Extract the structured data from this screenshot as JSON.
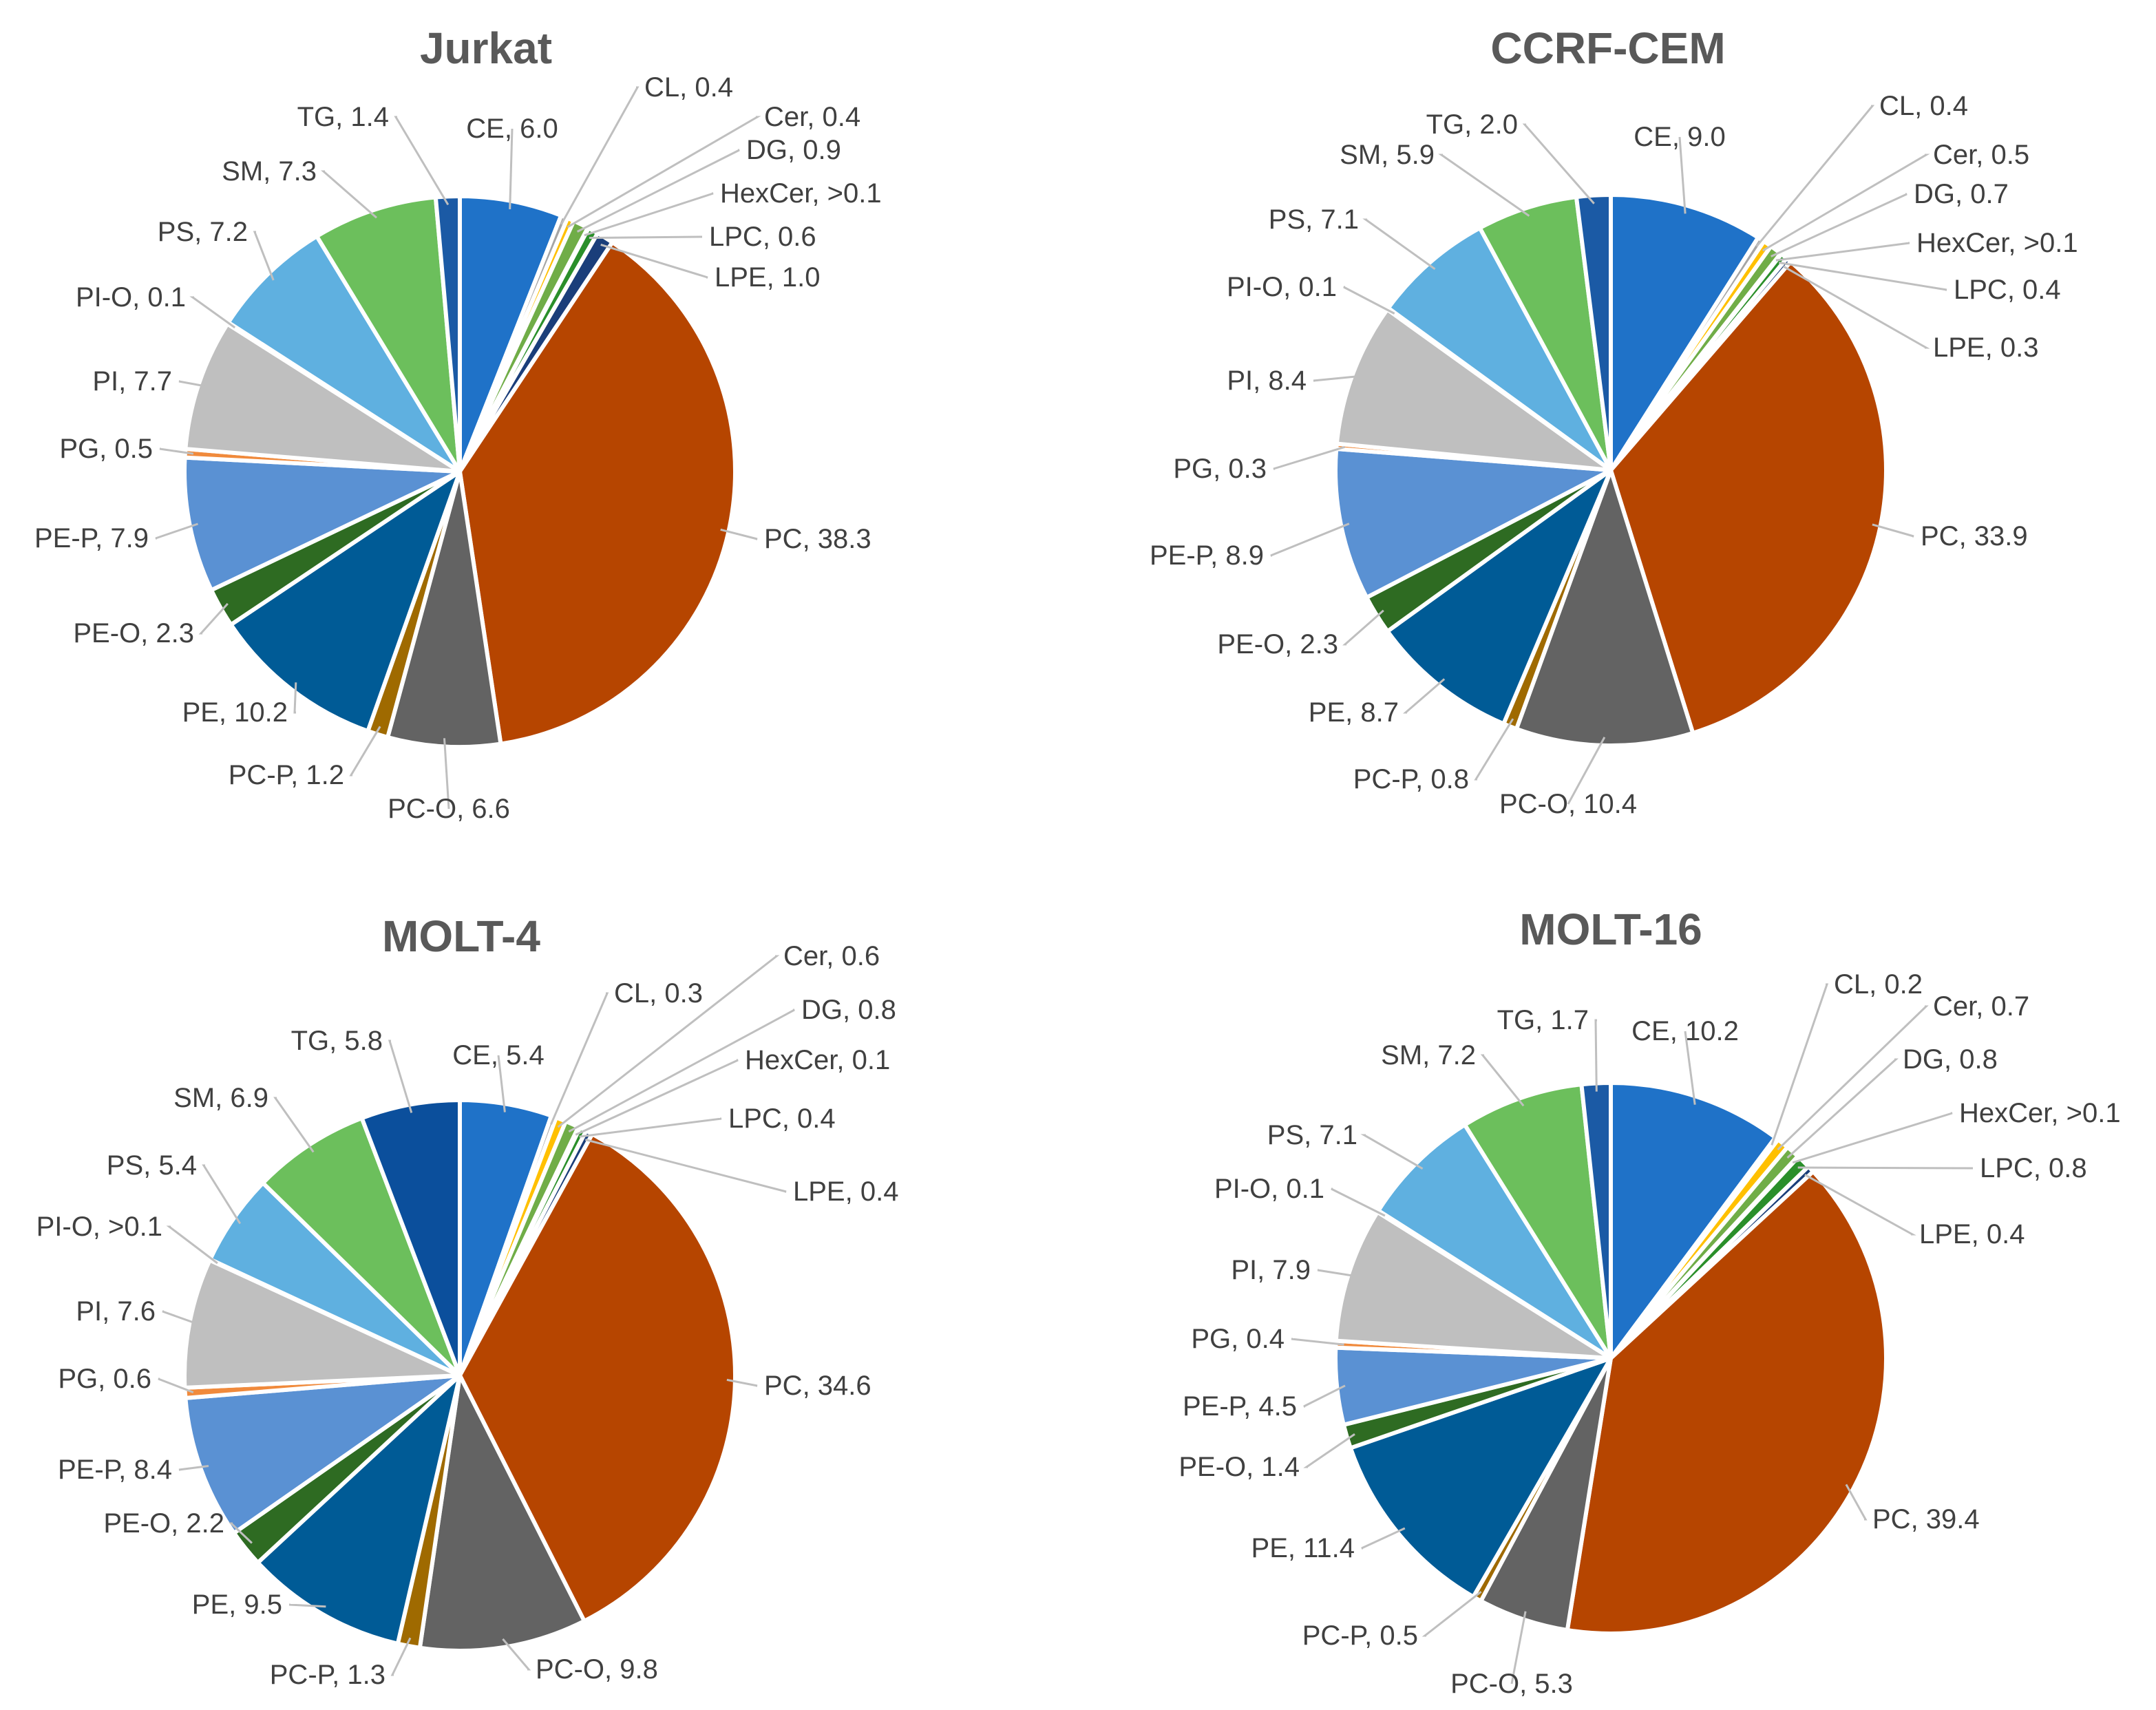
{
  "colors": {
    "CE": "#1f72c8",
    "CL": "#a5a5a5",
    "Cer": "#ffc000",
    "DG": "#70ad47",
    "HexCer": "#4472c4",
    "LPC": "#2a8f2a",
    "LPE": "#1a3e7a",
    "PC": "#b64500",
    "PC-O": "#636363",
    "PC-P": "#9f6a00",
    "PE": "#005b96",
    "PE-O": "#2e6b22",
    "PE-P": "#5a91d3",
    "PG": "#f08a3c",
    "PI": "#bfbfbf",
    "PI-O": "#ffe699",
    "PS": "#5fb0e0",
    "SM": "#6cbf5c",
    "TG": "#1b5aa5",
    "TG_molt4": "#0b4f9c"
  },
  "chart_data": [
    {
      "type": "pie",
      "title": "Jurkat",
      "slices": [
        {
          "name": "CE",
          "value": 6.0,
          "label": "CE, 6.0"
        },
        {
          "name": "CL",
          "value": 0.4,
          "label": "CL, 0.4"
        },
        {
          "name": "Cer",
          "value": 0.4,
          "label": "Cer, 0.4"
        },
        {
          "name": "DG",
          "value": 0.9,
          "label": "DG, 0.9"
        },
        {
          "name": "HexCer",
          "value": 0.05,
          "label": "HexCer, >0.1"
        },
        {
          "name": "LPC",
          "value": 0.6,
          "label": "LPC, 0.6"
        },
        {
          "name": "LPE",
          "value": 1.0,
          "label": "LPE, 1.0"
        },
        {
          "name": "PC",
          "value": 38.3,
          "label": "PC, 38.3"
        },
        {
          "name": "PC-O",
          "value": 6.6,
          "label": "PC-O, 6.6"
        },
        {
          "name": "PC-P",
          "value": 1.2,
          "label": "PC-P, 1.2"
        },
        {
          "name": "PE",
          "value": 10.2,
          "label": "PE, 10.2"
        },
        {
          "name": "PE-O",
          "value": 2.3,
          "label": "PE-O, 2.3"
        },
        {
          "name": "PE-P",
          "value": 7.9,
          "label": "PE-P, 7.9"
        },
        {
          "name": "PG",
          "value": 0.5,
          "label": "PG, 0.5"
        },
        {
          "name": "PI",
          "value": 7.7,
          "label": "PI, 7.7"
        },
        {
          "name": "PI-O",
          "value": 0.1,
          "label": "PI-O, 0.1"
        },
        {
          "name": "PS",
          "value": 7.2,
          "label": "PS, 7.2"
        },
        {
          "name": "SM",
          "value": 7.3,
          "label": "SM, 7.3"
        },
        {
          "name": "TG",
          "value": 1.4,
          "label": "TG, 1.4"
        }
      ]
    },
    {
      "type": "pie",
      "title": "CCRF-CEM",
      "slices": [
        {
          "name": "CE",
          "value": 9.0,
          "label": "CE, 9.0"
        },
        {
          "name": "CL",
          "value": 0.4,
          "label": "CL, 0.4"
        },
        {
          "name": "Cer",
          "value": 0.5,
          "label": "Cer, 0.5"
        },
        {
          "name": "DG",
          "value": 0.7,
          "label": "DG, 0.7"
        },
        {
          "name": "HexCer",
          "value": 0.05,
          "label": "HexCer, >0.1"
        },
        {
          "name": "LPC",
          "value": 0.4,
          "label": "LPC, 0.4"
        },
        {
          "name": "LPE",
          "value": 0.3,
          "label": "LPE, 0.3"
        },
        {
          "name": "PC",
          "value": 33.9,
          "label": "PC, 33.9"
        },
        {
          "name": "PC-O",
          "value": 10.4,
          "label": "PC-O, 10.4"
        },
        {
          "name": "PC-P",
          "value": 0.8,
          "label": "PC-P, 0.8"
        },
        {
          "name": "PE",
          "value": 8.7,
          "label": "PE, 8.7"
        },
        {
          "name": "PE-O",
          "value": 2.3,
          "label": "PE-O, 2.3"
        },
        {
          "name": "PE-P",
          "value": 8.9,
          "label": "PE-P, 8.9"
        },
        {
          "name": "PG",
          "value": 0.3,
          "label": "PG, 0.3"
        },
        {
          "name": "PI",
          "value": 8.4,
          "label": "PI, 8.4"
        },
        {
          "name": "PI-O",
          "value": 0.1,
          "label": "PI-O, 0.1"
        },
        {
          "name": "PS",
          "value": 7.1,
          "label": "PS, 7.1"
        },
        {
          "name": "SM",
          "value": 5.9,
          "label": "SM, 5.9"
        },
        {
          "name": "TG",
          "value": 2.0,
          "label": "TG, 2.0"
        }
      ]
    },
    {
      "type": "pie",
      "title": "MOLT-4",
      "slices": [
        {
          "name": "CE",
          "value": 5.4,
          "label": "CE, 5.4"
        },
        {
          "name": "CL",
          "value": 0.3,
          "label": "CL, 0.3"
        },
        {
          "name": "Cer",
          "value": 0.6,
          "label": "Cer, 0.6"
        },
        {
          "name": "DG",
          "value": 0.8,
          "label": "DG, 0.8"
        },
        {
          "name": "HexCer",
          "value": 0.1,
          "label": "HexCer, 0.1"
        },
        {
          "name": "LPC",
          "value": 0.4,
          "label": "LPC, 0.4"
        },
        {
          "name": "LPE",
          "value": 0.4,
          "label": "LPE, 0.4"
        },
        {
          "name": "PC",
          "value": 34.6,
          "label": "PC, 34.6"
        },
        {
          "name": "PC-O",
          "value": 9.8,
          "label": "PC-O, 9.8"
        },
        {
          "name": "PC-P",
          "value": 1.3,
          "label": "PC-P, 1.3"
        },
        {
          "name": "PE",
          "value": 9.5,
          "label": "PE, 9.5"
        },
        {
          "name": "PE-O",
          "value": 2.2,
          "label": "PE-O, 2.2"
        },
        {
          "name": "PE-P",
          "value": 8.4,
          "label": "PE-P, 8.4"
        },
        {
          "name": "PG",
          "value": 0.6,
          "label": "PG, 0.6"
        },
        {
          "name": "PI",
          "value": 7.6,
          "label": "PI, 7.6"
        },
        {
          "name": "PI-O",
          "value": 0.05,
          "label": "PI-O, >0.1"
        },
        {
          "name": "PS",
          "value": 5.4,
          "label": "PS, 5.4"
        },
        {
          "name": "SM",
          "value": 6.9,
          "label": "SM, 6.9"
        },
        {
          "name": "TG",
          "value": 5.8,
          "label": "TG, 5.8"
        }
      ]
    },
    {
      "type": "pie",
      "title": "MOLT-16",
      "slices": [
        {
          "name": "CE",
          "value": 10.2,
          "label": "CE, 10.2"
        },
        {
          "name": "CL",
          "value": 0.2,
          "label": "CL, 0.2"
        },
        {
          "name": "Cer",
          "value": 0.7,
          "label": "Cer, 0.7"
        },
        {
          "name": "DG",
          "value": 0.8,
          "label": "DG, 0.8"
        },
        {
          "name": "HexCer",
          "value": 0.05,
          "label": "HexCer, >0.1"
        },
        {
          "name": "LPC",
          "value": 0.8,
          "label": "LPC, 0.8"
        },
        {
          "name": "LPE",
          "value": 0.4,
          "label": "LPE, 0.4"
        },
        {
          "name": "PC",
          "value": 39.4,
          "label": "PC, 39.4"
        },
        {
          "name": "PC-O",
          "value": 5.3,
          "label": "PC-O, 5.3"
        },
        {
          "name": "PC-P",
          "value": 0.5,
          "label": "PC-P, 0.5"
        },
        {
          "name": "PE",
          "value": 11.4,
          "label": "PE, 11.4"
        },
        {
          "name": "PE-O",
          "value": 1.4,
          "label": "PE-O, 1.4"
        },
        {
          "name": "PE-P",
          "value": 4.5,
          "label": "PE-P, 4.5"
        },
        {
          "name": "PG",
          "value": 0.4,
          "label": "PG, 0.4"
        },
        {
          "name": "PI",
          "value": 7.9,
          "label": "PI, 7.9"
        },
        {
          "name": "PI-O",
          "value": 0.1,
          "label": "PI-O, 0.1"
        },
        {
          "name": "PS",
          "value": 7.1,
          "label": "PS, 7.1"
        },
        {
          "name": "SM",
          "value": 7.2,
          "label": "SM, 7.2"
        },
        {
          "name": "TG",
          "value": 1.7,
          "label": "TG, 1.7"
        }
      ]
    }
  ]
}
